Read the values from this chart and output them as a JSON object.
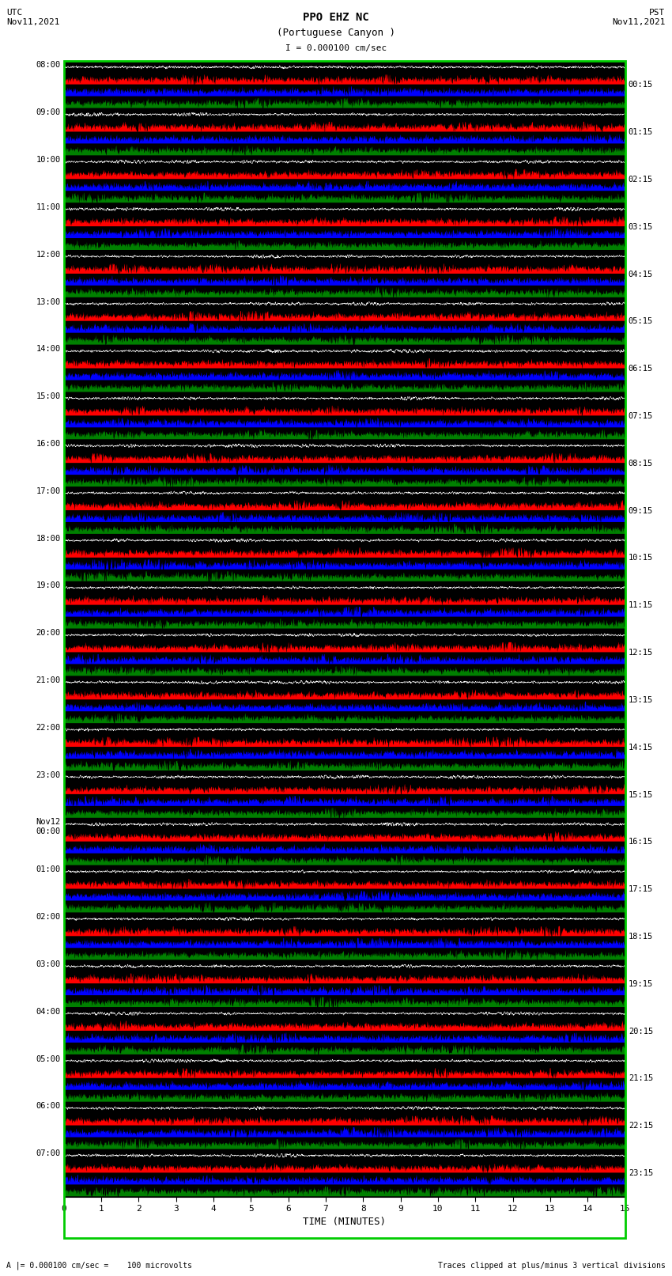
{
  "title_line1": "PPO EHZ NC",
  "title_line2": "(Portuguese Canyon )",
  "title_line3": "I = 0.000100 cm/sec",
  "utc_label": "UTC\nNov11,2021",
  "pst_label": "PST\nNov11,2021",
  "xlabel": "TIME (MINUTES)",
  "footer_left": "A |= 0.000100 cm/sec =    100 microvolts",
  "footer_right": "Traces clipped at plus/minus 3 vertical divisions",
  "background_color": "#ffffff",
  "plot_bg_color": "#000000",
  "trace_colors": [
    "#ff0000",
    "#0000ff",
    "#008000",
    "#ffffff"
  ],
  "time_ticks": [
    0,
    1,
    2,
    3,
    4,
    5,
    6,
    7,
    8,
    9,
    10,
    11,
    12,
    13,
    14,
    15
  ],
  "x_min": 0,
  "x_max": 15,
  "num_rows": 96,
  "left_labels_utc": [
    "08:00",
    "09:00",
    "10:00",
    "11:00",
    "12:00",
    "13:00",
    "14:00",
    "15:00",
    "16:00",
    "17:00",
    "18:00",
    "19:00",
    "20:00",
    "21:00",
    "22:00",
    "23:00",
    "Nov12\n00:00",
    "01:00",
    "02:00",
    "03:00",
    "04:00",
    "05:00",
    "06:00",
    "07:00"
  ],
  "right_labels_pst": [
    "00:15",
    "01:15",
    "02:15",
    "03:15",
    "04:15",
    "05:15",
    "06:15",
    "07:15",
    "08:15",
    "09:15",
    "10:15",
    "11:15",
    "12:15",
    "13:15",
    "14:15",
    "15:15",
    "16:15",
    "17:15",
    "18:15",
    "19:15",
    "20:15",
    "21:15",
    "22:15",
    "23:15"
  ],
  "fig_width": 8.5,
  "fig_height": 16.13,
  "seed": 42,
  "n_points": 3000,
  "fill_amplitude": 0.42,
  "noise_amplitude": 0.08,
  "burst_probability": 0.3
}
